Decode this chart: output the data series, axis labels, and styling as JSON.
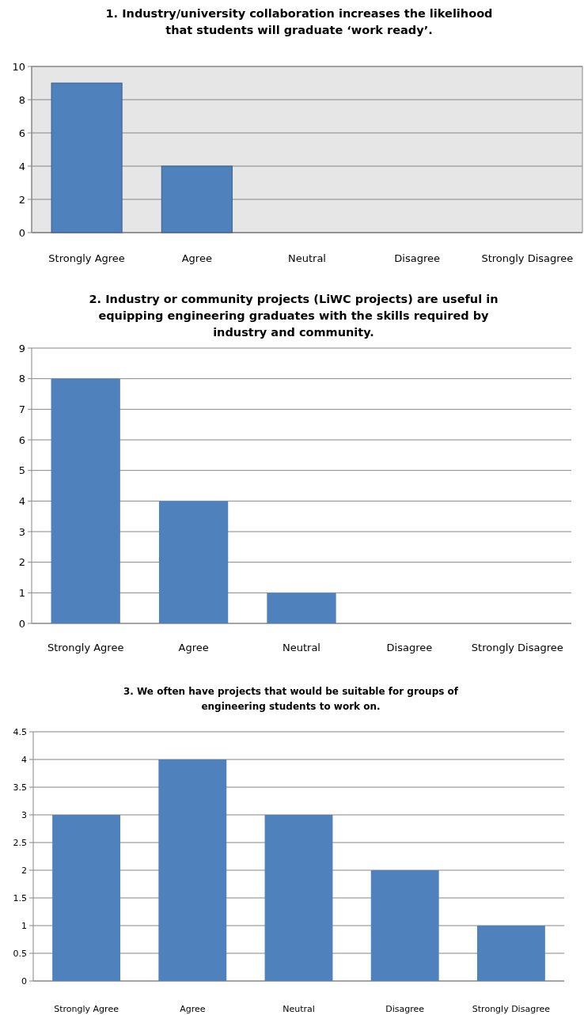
{
  "chart_data": [
    {
      "type": "bar",
      "title": "1. Industry/university collaboration increases the likelihood\nthat students will graduate ‘work ready’.",
      "categories": [
        "Strongly Agree",
        "Agree",
        "Neutral",
        "Disagree",
        "Strongly Disagree"
      ],
      "values": [
        9,
        4,
        0,
        0,
        0
      ],
      "color": "#4f81bd",
      "ylim": [
        0,
        10
      ],
      "yticks": [
        0,
        2,
        4,
        6,
        8,
        10
      ],
      "grid": "y"
    },
    {
      "type": "bar",
      "title": "2. Industry or community projects (LiWC projects) are useful in\nequipping engineering graduates with the skills required by\nindustry and community.",
      "categories": [
        "Strongly Agree",
        "Agree",
        "Neutral",
        "Disagree",
        "Strongly Disagree"
      ],
      "values": [
        8,
        4,
        1,
        0,
        0
      ],
      "color": "#4f81bd",
      "ylim": [
        0,
        9
      ],
      "yticks": [
        0,
        1,
        2,
        3,
        4,
        5,
        6,
        7,
        8,
        9
      ],
      "grid": "y"
    },
    {
      "type": "bar",
      "title": "3. We often have projects that would be suitable for groups of\nengineering students to work on.",
      "categories": [
        "Strongly Agree",
        "Agree",
        "Neutral",
        "Disagree",
        "Strongly Disagree"
      ],
      "values": [
        3,
        4,
        3,
        2,
        1
      ],
      "color": "#4f81bd",
      "ylim": [
        0,
        4.5
      ],
      "yticks": [
        0,
        0.5,
        1,
        1.5,
        2,
        2.5,
        3,
        3.5,
        4,
        4.5
      ],
      "grid": "y"
    }
  ]
}
